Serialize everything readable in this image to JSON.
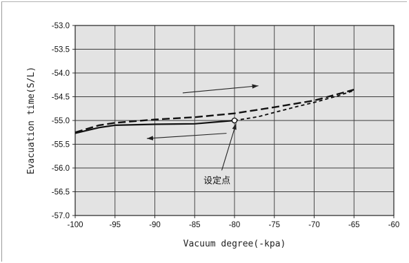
{
  "chart_data": {
    "type": "line",
    "xlabel": "Vacuum degree(-kpa)",
    "ylabel": "Evacuation time(S/L)",
    "xlim": [
      -100,
      -60
    ],
    "ylim": [
      -57.0,
      -53.0
    ],
    "x_ticks": [
      "-100",
      "-95",
      "-90",
      "-85",
      "-80",
      "-75",
      "-70",
      "-65",
      "-60"
    ],
    "y_ticks": [
      "-53.0",
      "-53.5",
      "-54.0",
      "-54.5",
      "-55.0",
      "-55.5",
      "-56.0",
      "-56.5",
      "-57.0"
    ],
    "grid": true,
    "series": [
      {
        "style": "solid",
        "x": [
          -100,
          -97,
          -95,
          -90,
          -85,
          -80
        ],
        "y": [
          -55.27,
          -55.15,
          -55.1,
          -55.08,
          -55.07,
          -55.0
        ]
      },
      {
        "style": "long-dash",
        "x": [
          -100,
          -97,
          -95,
          -90,
          -85,
          -80,
          -75,
          -70,
          -65
        ],
        "y": [
          -55.25,
          -55.1,
          -55.05,
          -54.98,
          -54.93,
          -54.85,
          -54.72,
          -54.58,
          -54.35
        ]
      },
      {
        "style": "short-dash",
        "x": [
          -80,
          -77,
          -75,
          -72,
          -70,
          -67,
          -65
        ],
        "y": [
          -55.0,
          -54.92,
          -54.83,
          -54.7,
          -54.62,
          -54.48,
          -54.37
        ]
      }
    ],
    "set_point": {
      "x": -80,
      "y": -55.0
    },
    "annotations": [
      {
        "text": "设定点",
        "x": -82.2,
        "y": -56.25
      }
    ],
    "arrows": [
      {
        "from": [
          -86.5,
          -54.42
        ],
        "to": [
          -77,
          -54.27
        ]
      },
      {
        "from": [
          -81,
          -55.27
        ],
        "to": [
          -91,
          -55.38
        ]
      },
      {
        "from": [
          -81.6,
          -56.05
        ],
        "to": [
          -79.8,
          -55.06
        ]
      }
    ]
  }
}
